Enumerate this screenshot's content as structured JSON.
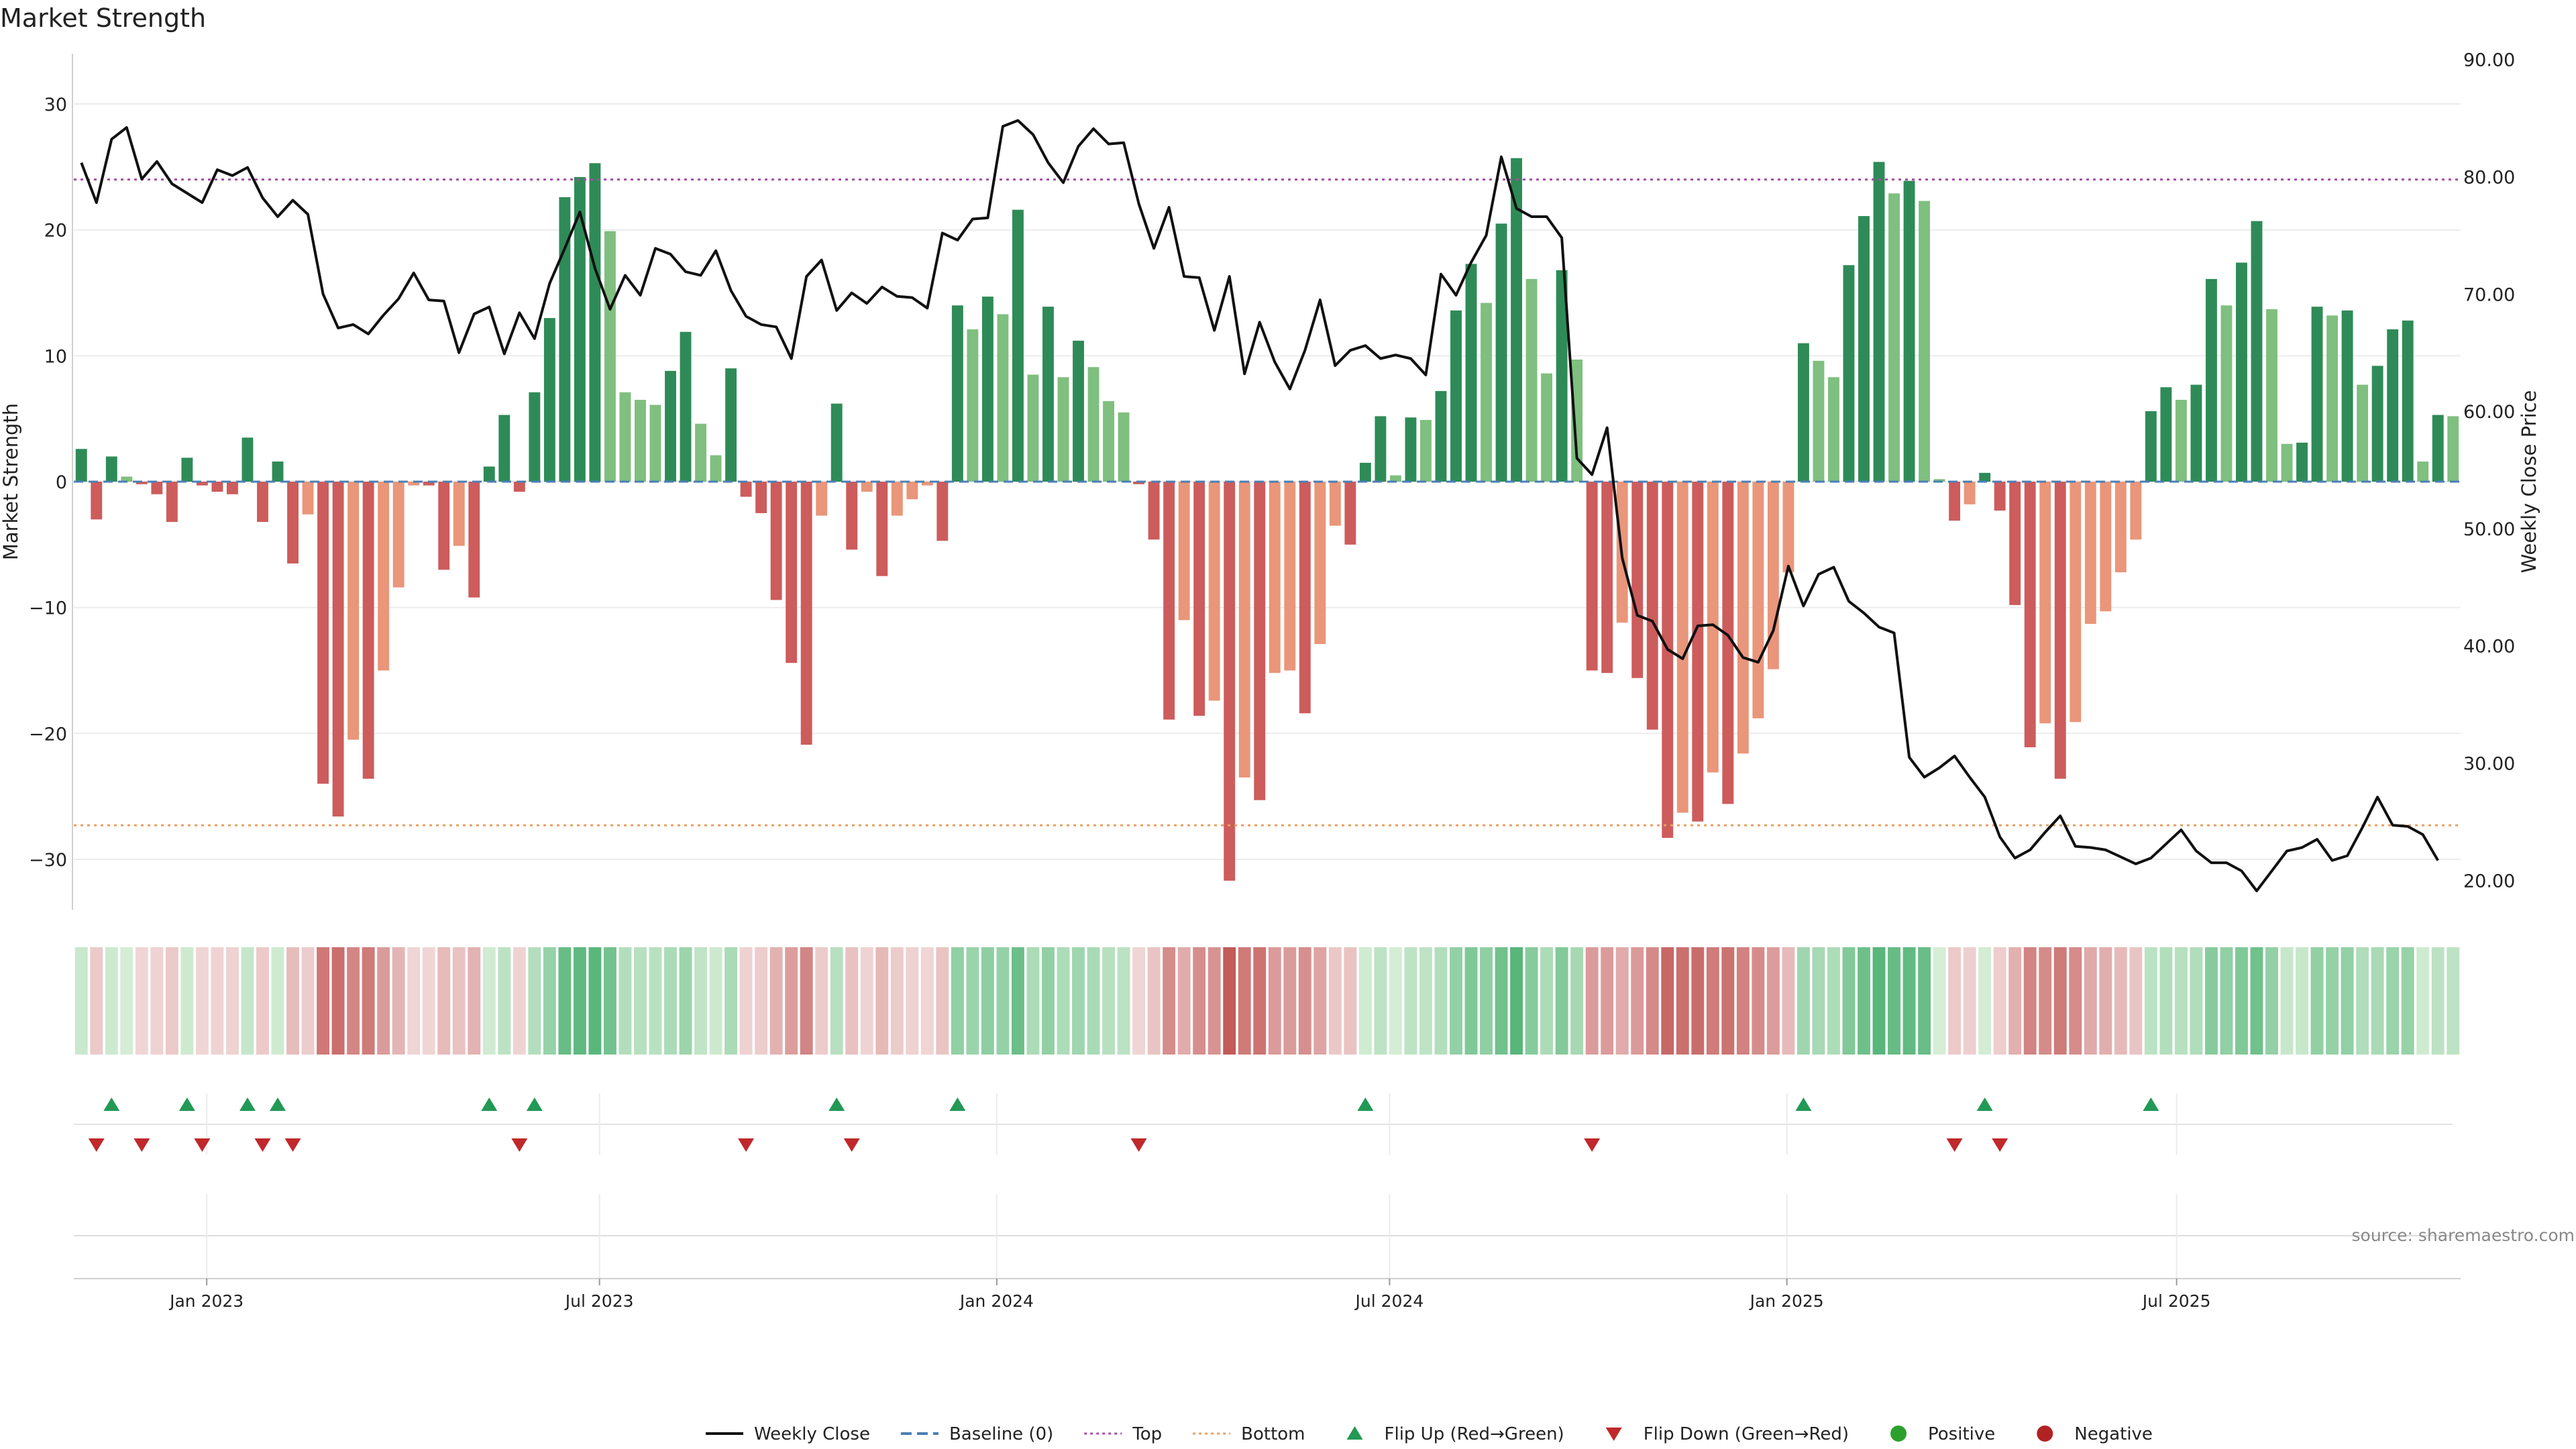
{
  "chart_data": {
    "type": "bar",
    "title": "Market Strength",
    "source_note": "source: sharemaestro.com",
    "y_left": {
      "label": "Market Strength",
      "range": [
        -34,
        34
      ],
      "ticks": [
        -30,
        -20,
        -10,
        0,
        10,
        20,
        30
      ]
    },
    "y_right": {
      "label": "Weekly Close Price",
      "range": [
        17.5,
        90.5
      ],
      "ticks": [
        20,
        30,
        40,
        50,
        60,
        70,
        80,
        90
      ],
      "tick_labels": [
        "20.00",
        "30.00",
        "40.00",
        "50.00",
        "60.00",
        "70.00",
        "80.00",
        "90.00"
      ]
    },
    "x_axis": {
      "start_week": "2022-11-07",
      "ticks": [
        {
          "label": "Jan 2023",
          "week_index": 8.3
        },
        {
          "label": "Jul 2023",
          "week_index": 34.3
        },
        {
          "label": "Jan 2024",
          "week_index": 60.6
        },
        {
          "label": "Jul 2024",
          "week_index": 86.6
        },
        {
          "label": "Jan 2025",
          "week_index": 112.9
        },
        {
          "label": "Jul 2025",
          "week_index": 138.7
        }
      ]
    },
    "reference_lines": {
      "baseline": 0,
      "top": 24,
      "bottom": -27.3
    },
    "colors": {
      "strong_green": "#2e8b57",
      "light_green": "#7fbf7f",
      "strong_red": "#cd5c5c",
      "light_red": "#e9967a",
      "line": "#111111",
      "baseline": "#4a7fb5",
      "top": "#a64ca6",
      "bottom": "#e8a060",
      "flip_up": "#229954",
      "flip_down": "#c0282b",
      "positive": "#2ca02c",
      "negative": "#b22222"
    },
    "strength": [
      2.6,
      -3,
      2,
      0.4,
      -0.2,
      -1,
      -3.2,
      1.9,
      -0.3,
      -0.8,
      -1,
      3.5,
      -3.2,
      1.6,
      -6.5,
      -2.6,
      -24,
      -26.6,
      -20.5,
      -23.6,
      -15,
      -8.4,
      -0.3,
      -0.3,
      -7,
      -5.1,
      -9.2,
      1.2,
      5.3,
      -0.8,
      7.1,
      13,
      22.6,
      24.2,
      25.3,
      19.9,
      7.1,
      6.5,
      6.1,
      8.8,
      11.9,
      4.6,
      2.1,
      9,
      -1.2,
      -2.5,
      -9.4,
      -14.4,
      -20.9,
      -2.7,
      6.2,
      -5.4,
      -0.8,
      -7.5,
      -2.7,
      -1.4,
      -0.3,
      -4.7,
      14,
      12.1,
      14.7,
      13.3,
      21.6,
      8.5,
      13.9,
      8.3,
      11.2,
      9.1,
      6.4,
      5.5,
      -0.2,
      -4.6,
      -18.9,
      -11,
      -18.6,
      -17.4,
      -31.7,
      -23.5,
      -25.3,
      -15.2,
      -15,
      -18.4,
      -12.9,
      -3.5,
      -5,
      1.5,
      5.2,
      0.5,
      5.1,
      4.9,
      7.2,
      13.6,
      17.3,
      14.2,
      20.5,
      25.7,
      16.1,
      8.6,
      16.8,
      9.7,
      -15,
      -15.2,
      -11.2,
      -15.6,
      -19.7,
      -28.3,
      -26.3,
      -27,
      -23.1,
      -25.6,
      -21.6,
      -18.8,
      -14.9,
      -7.2,
      11,
      9.6,
      8.3,
      17.2,
      21.1,
      25.4,
      22.9,
      23.9,
      22.3,
      0.2,
      -3.1,
      -1.8,
      0.7,
      -2.3,
      -9.8,
      -21.1,
      -19.2,
      -23.6,
      -19.1,
      -11.3,
      -10.3,
      -7.2,
      -4.6,
      5.6,
      7.5,
      6.5,
      7.7,
      16.1,
      14,
      17.4,
      20.7,
      13.7,
      3,
      3.1,
      13.9,
      13.2,
      13.6,
      7.7,
      9.2,
      12.1,
      12.8,
      1.6,
      5.3,
      5.2
    ],
    "series": [
      {
        "name": "Weekly Close",
        "values": [
          81.2,
          77.8,
          83.2,
          84.2,
          79.8,
          81.3,
          79.4,
          78.6,
          77.8,
          80.6,
          80.1,
          80.8,
          78.2,
          76.6,
          78,
          76.8,
          70,
          67.1,
          67.4,
          66.6,
          68.2,
          69.6,
          71.8,
          69.5,
          69.4,
          65,
          68.3,
          68.9,
          64.9,
          68.4,
          66.2,
          70.9,
          73.9,
          77,
          72.2,
          68.7,
          71.6,
          69.9,
          73.9,
          73.4,
          71.9,
          71.6,
          73.7,
          70.3,
          68.1,
          67.4,
          67.2,
          64.5,
          71.5,
          72.9,
          68.6,
          70.1,
          69.2,
          70.6,
          69.8,
          69.7,
          68.8,
          75.2,
          74.6,
          76.4,
          76.5,
          84.3,
          84.8,
          83.6,
          81.2,
          79.5,
          82.6,
          84.1,
          82.8,
          82.9,
          77.7,
          73.9,
          77.4,
          71.5,
          71.4,
          66.9,
          71.5,
          63.2,
          67.6,
          64.2,
          61.9,
          65.2,
          69.5,
          63.9,
          65.2,
          65.6,
          64.5,
          64.8,
          64.5,
          63.1,
          71.7,
          69.9,
          72.7,
          75,
          81.7,
          77.3,
          76.6,
          76.6,
          74.8,
          56,
          54.6,
          58.6,
          47.5,
          42.6,
          42.1,
          39.7,
          38.9,
          41.7,
          41.8,
          40.9,
          39,
          38.6,
          41.3,
          46.8,
          43.4,
          46.1,
          46.7,
          43.8,
          42.8,
          41.6,
          41.1,
          30.5,
          28.8,
          29.6,
          30.6,
          28.8,
          27.1,
          23.7,
          21.9,
          22.6,
          24.1,
          25.5,
          22.9,
          22.8,
          22.6,
          22,
          21.4,
          21.9,
          23.1,
          24.3,
          22.5,
          21.5,
          21.5,
          20.8,
          19.1,
          20.8,
          22.5,
          22.8,
          23.5,
          21.7,
          22.1,
          24.5,
          27.1,
          24.7,
          24.6,
          23.9,
          21.7
        ]
      },
      {
        "name": "Baseline (0)"
      },
      {
        "name": "Top"
      },
      {
        "name": "Bottom"
      },
      {
        "name": "Flip Up (Red→Green)"
      },
      {
        "name": "Flip Down (Green→Red)"
      },
      {
        "name": "Positive"
      },
      {
        "name": "Negative"
      }
    ]
  }
}
